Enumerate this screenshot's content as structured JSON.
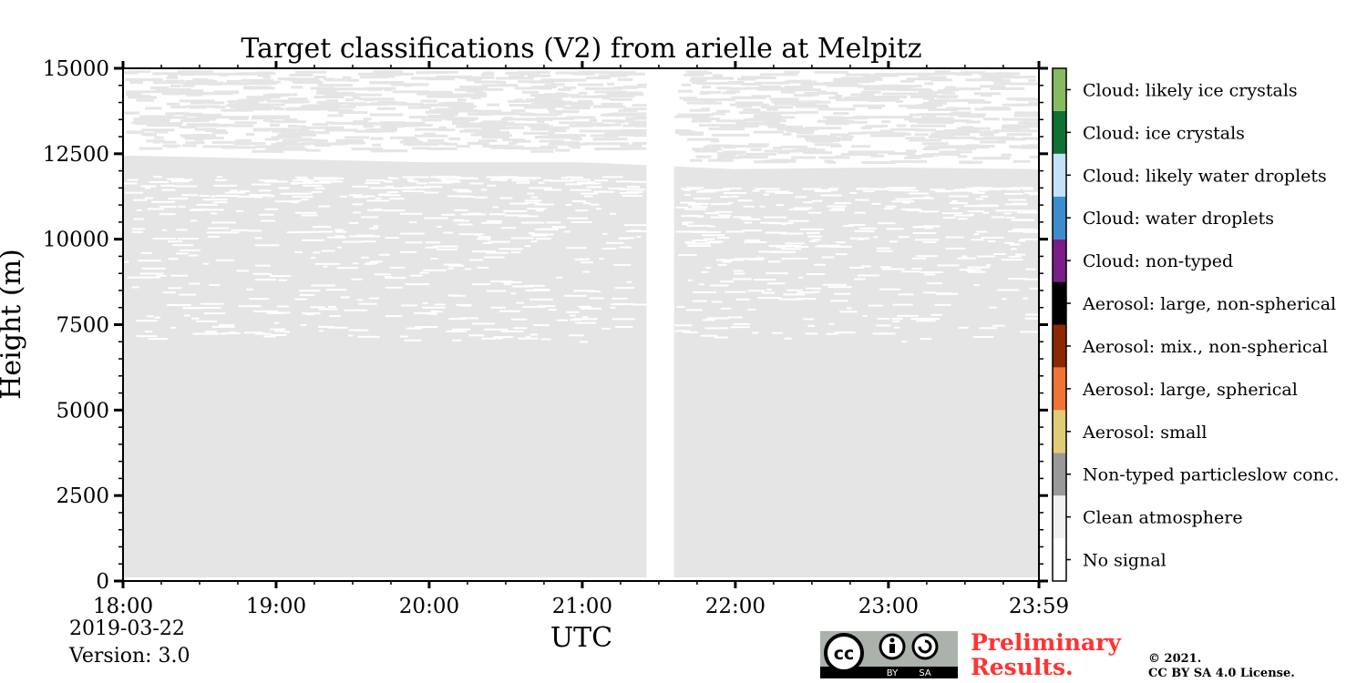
{
  "chart_data": {
    "type": "heatmap",
    "title": "Target classifications (V2) from arielle at Melpitz",
    "xlabel": "UTC",
    "ylabel": "Height (m)",
    "x_ticks": [
      "18:00",
      "19:00",
      "20:00",
      "21:00",
      "22:00",
      "23:00",
      "23:59"
    ],
    "x_range_hours": [
      18.0,
      23.983
    ],
    "y_ticks": [
      0,
      2500,
      5000,
      7500,
      10000,
      12500,
      15000
    ],
    "ylim": [
      0,
      15000
    ],
    "data_gap_hours": [
      21.42,
      21.6
    ],
    "observed_classes": [
      "Clean atmosphere"
    ],
    "clean_atmosphere_top_m": [
      {
        "hour": 18.0,
        "height_m": 12650
      },
      {
        "hour": 19.0,
        "height_m": 12550
      },
      {
        "hour": 20.0,
        "height_m": 12450
      },
      {
        "hour": 21.0,
        "height_m": 12450
      },
      {
        "hour": 22.0,
        "height_m": 12250
      },
      {
        "hour": 23.0,
        "height_m": 12300
      },
      {
        "hour": 23.983,
        "height_m": 12250
      }
    ],
    "legend": [
      {
        "label": "No signal",
        "color": "#ffffff"
      },
      {
        "label": "Clean atmosphere",
        "color": "#f0f0f0"
      },
      {
        "label": "Non-typed particleslow conc.",
        "color": "#999999"
      },
      {
        "label": "Aerosol: small",
        "color": "#e1cb77"
      },
      {
        "label": "Aerosol: large, spherical",
        "color": "#ef7435"
      },
      {
        "label": "Aerosol: mix., non-spherical",
        "color": "#8b2905"
      },
      {
        "label": "Aerosol: large, non-spherical",
        "color": "#000000"
      },
      {
        "label": "Cloud: non-typed",
        "color": "#7b1d86"
      },
      {
        "label": "Cloud: water droplets",
        "color": "#3d8dcc"
      },
      {
        "label": "Cloud: likely water droplets",
        "color": "#c3e2f9"
      },
      {
        "label": "Cloud: ice crystals",
        "color": "#117135"
      },
      {
        "label": "Cloud: likely ice crystals",
        "color": "#87bb62"
      }
    ],
    "fill_color": "#e5e5e5"
  },
  "footer": {
    "date": "2019-03-22",
    "version": "Version: 3.0",
    "cc_by": "BY",
    "cc_sa": "SA",
    "preliminary_line1": "Preliminary",
    "preliminary_line2": "Results.",
    "copyright_line1": "©  2021.",
    "copyright_line2": "CC BY SA 4.0 License."
  }
}
